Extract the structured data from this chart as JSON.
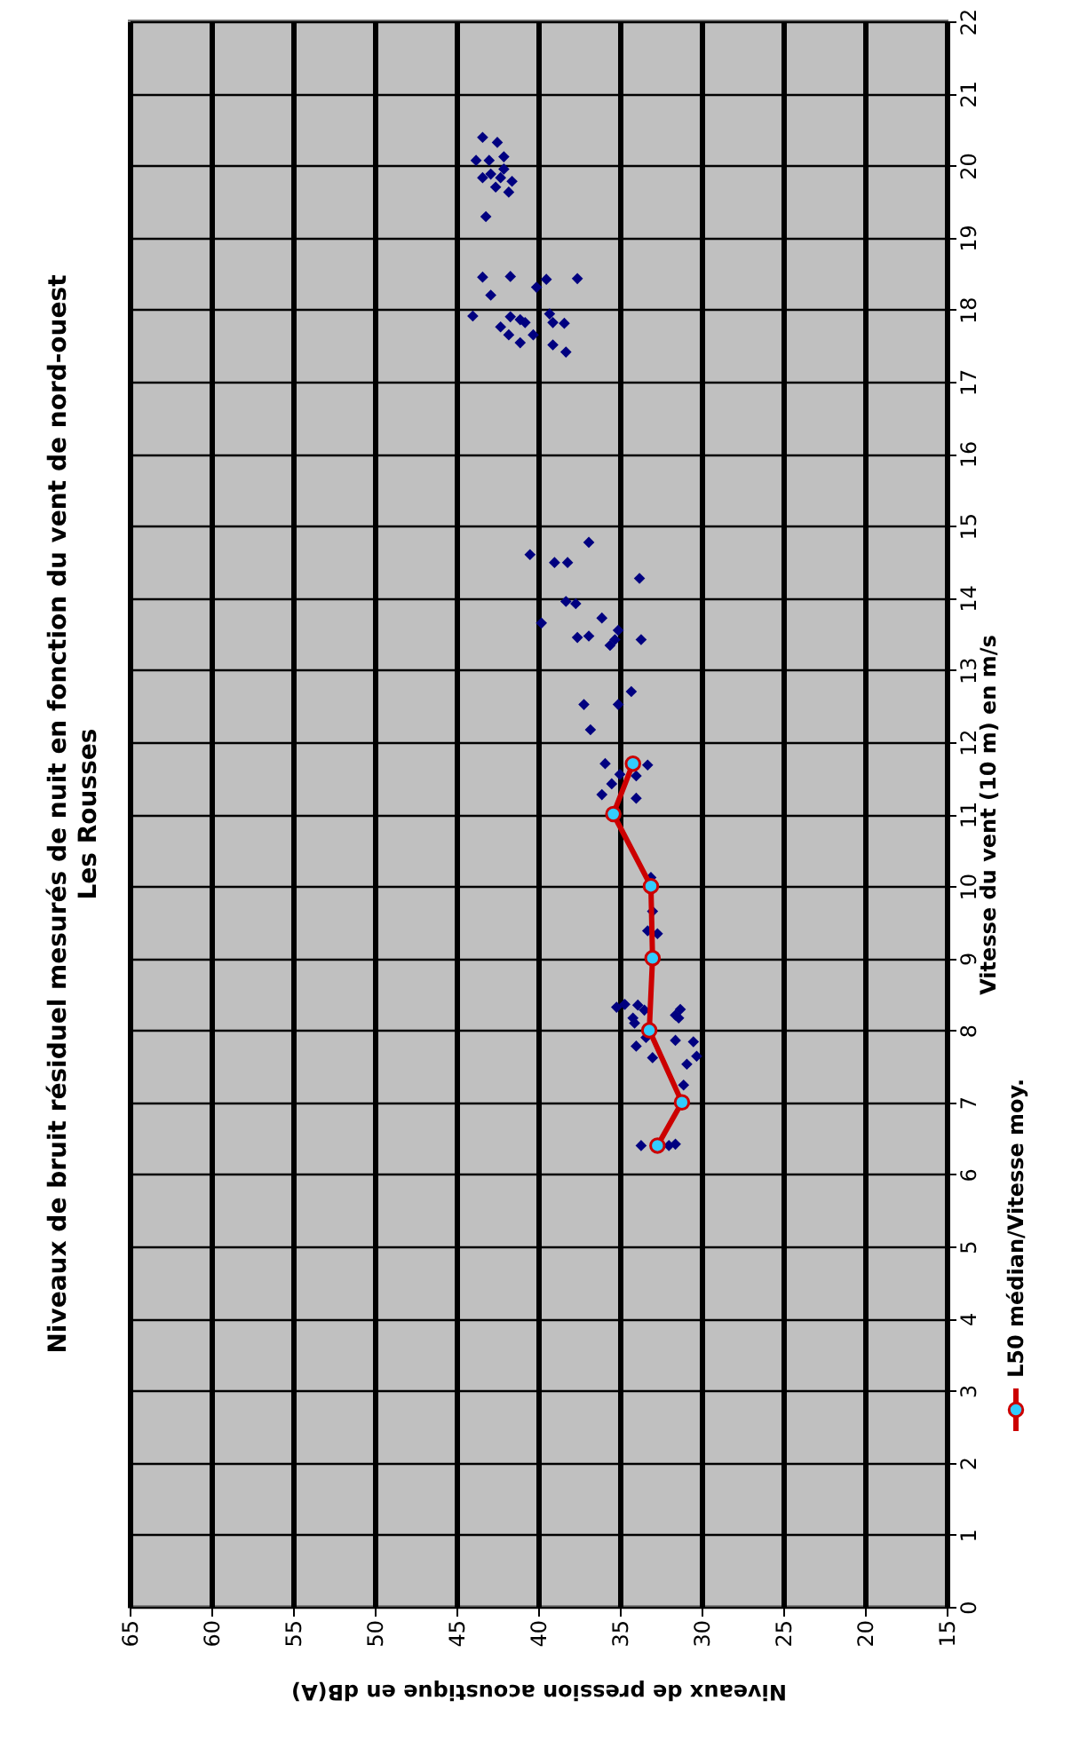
{
  "chart_data": {
    "type": "scatter",
    "title": "Niveaux de bruit résiduel mesurés de nuit en fonction du vent de nord-ouest",
    "subtitle": "Les Rousses",
    "xlabel": "Niveaux de pression acoustique en dB(A)",
    "ylabel": "Vitesse du vent (10 m) en m/s",
    "xlim": [
      65,
      15
    ],
    "xticks": [
      65,
      60,
      55,
      50,
      45,
      40,
      35,
      30,
      25,
      20,
      15
    ],
    "ylim": [
      0,
      22
    ],
    "yticks": [
      0,
      1,
      2,
      3,
      4,
      5,
      6,
      7,
      8,
      9,
      10,
      11,
      12,
      13,
      14,
      15,
      16,
      17,
      18,
      19,
      20,
      21,
      22
    ],
    "grid": true,
    "legend": "bottom right",
    "series": [
      {
        "color": "#000080",
        "marker": "diamond",
        "x": [
          36.9,
          40.5,
          39.0,
          38.2,
          33.8,
          38.3,
          37.7,
          39.8,
          36.1,
          37.6,
          36.9,
          35.1,
          35.3,
          35.6,
          33.7,
          34.3,
          37.2,
          35.1,
          36.8,
          35.9,
          33.3,
          35.0,
          34.0,
          35.5,
          36.1,
          34.0,
          33.1,
          33.0,
          33.3,
          32.7,
          35.2,
          34.7,
          33.9,
          33.5,
          34.2,
          34.1,
          31.6,
          31.3,
          31.4,
          33.4,
          31.6,
          30.5,
          34.0,
          33.0,
          30.3,
          30.9,
          31.1,
          33.7,
          32.0,
          31.6,
          41.7,
          39.5,
          37.6,
          40.1,
          39.3,
          41.7,
          41.1,
          40.8,
          42.3,
          39.1,
          38.4,
          41.8,
          40.3,
          41.1,
          39.1,
          38.3,
          44.0,
          43.4,
          42.9,
          43.4,
          42.5,
          43.8,
          42.1,
          42.9,
          43.4,
          42.3,
          41.6,
          42.6,
          41.8,
          43.2,
          43.0,
          42.1
        ],
        "values": [
          14.77,
          14.6,
          14.49,
          14.49,
          14.27,
          13.95,
          13.92,
          13.65,
          13.72,
          13.45,
          13.47,
          13.55,
          13.42,
          13.34,
          13.42,
          12.7,
          12.52,
          12.52,
          12.17,
          11.7,
          11.68,
          11.55,
          11.53,
          11.42,
          11.27,
          11.22,
          10.12,
          9.65,
          9.38,
          9.34,
          8.32,
          8.36,
          8.35,
          8.28,
          8.17,
          8.1,
          8.21,
          8.29,
          8.17,
          7.9,
          7.86,
          7.84,
          7.78,
          7.62,
          7.64,
          7.53,
          7.24,
          6.4,
          6.4,
          6.42,
          18.46,
          18.42,
          18.43,
          18.31,
          17.94,
          17.9,
          17.86,
          17.82,
          17.76,
          17.82,
          17.81,
          17.65,
          17.65,
          17.54,
          17.51,
          17.41,
          17.91,
          18.45,
          18.2,
          20.39,
          20.32,
          20.07,
          20.12,
          19.88,
          19.83,
          19.83,
          19.78,
          19.7,
          19.63,
          19.29,
          20.07,
          19.95
        ]
      },
      {
        "type": "line",
        "name": "L50 médian/Vitesse moy.",
        "color": "#cc0000",
        "marker": "circle",
        "x": [
          32.7,
          31.2,
          33.2,
          33.0,
          33.1,
          35.4,
          34.2
        ],
        "values": [
          6.4,
          7.0,
          8.0,
          9.0,
          10.0,
          11.0,
          11.7
        ]
      }
    ]
  }
}
